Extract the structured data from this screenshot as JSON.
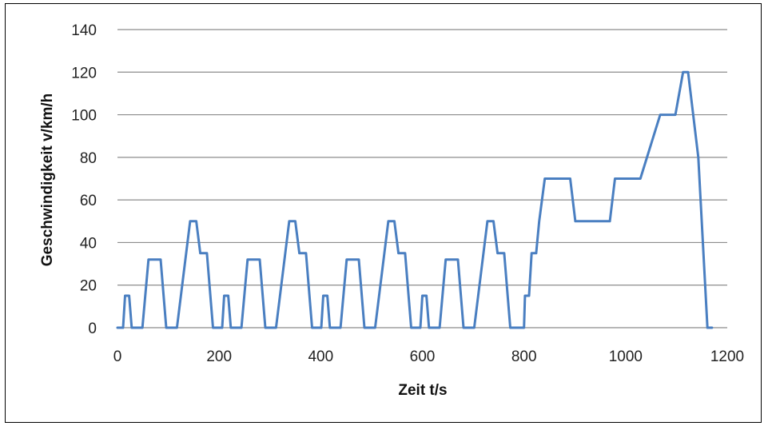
{
  "chart_data": {
    "type": "line",
    "title": "",
    "xlabel": "Zeit t/s",
    "ylabel": "Geschwindigkeit v/km/h",
    "xlim": [
      0,
      1200
    ],
    "ylim": [
      0,
      140
    ],
    "xticks": [
      "0",
      "200",
      "400",
      "600",
      "800",
      "1000",
      "1200"
    ],
    "yticks": [
      "0",
      "20",
      "40",
      "60",
      "80",
      "100",
      "120",
      "140"
    ],
    "grid": "horizontal",
    "legend": "none",
    "series": [
      {
        "color": "#4a7fc1",
        "x": [
          0,
          11,
          15,
          23,
          28,
          49,
          61,
          73,
          85,
          96,
          117,
          143,
          155,
          163,
          176,
          188,
          195,
          206,
          210,
          218,
          223,
          244,
          256,
          268,
          280,
          291,
          312,
          338,
          350,
          358,
          371,
          383,
          390,
          401,
          405,
          413,
          418,
          439,
          451,
          463,
          475,
          486,
          507,
          533,
          545,
          553,
          566,
          578,
          585,
          596,
          600,
          608,
          613,
          634,
          646,
          658,
          670,
          681,
          702,
          728,
          740,
          748,
          761,
          773,
          800,
          802,
          810,
          815,
          824,
          830,
          841,
          891,
          901,
          969,
          979,
          1029,
          1068,
          1098,
          1113,
          1123,
          1143,
          1161,
          1170
        ],
        "y": [
          0,
          0,
          15,
          15,
          0,
          0,
          32,
          32,
          32,
          0,
          0,
          50,
          50,
          35,
          35,
          0,
          0,
          0,
          15,
          15,
          0,
          0,
          32,
          32,
          32,
          0,
          0,
          50,
          50,
          35,
          35,
          0,
          0,
          0,
          15,
          15,
          0,
          0,
          32,
          32,
          32,
          0,
          0,
          50,
          50,
          35,
          35,
          0,
          0,
          0,
          15,
          15,
          0,
          0,
          32,
          32,
          32,
          0,
          0,
          50,
          50,
          35,
          35,
          0,
          0,
          15,
          15,
          35,
          35,
          50,
          70,
          70,
          50,
          50,
          70,
          70,
          100,
          100,
          120,
          120,
          80,
          0,
          0
        ]
      }
    ]
  }
}
